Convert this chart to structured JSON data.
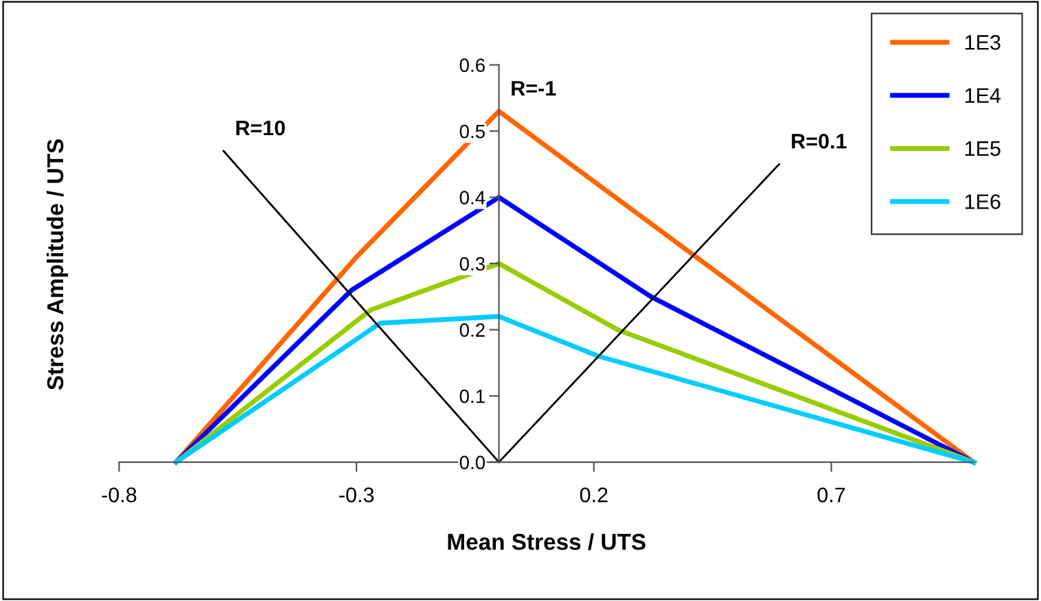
{
  "chart_data": {
    "type": "line",
    "xlabel": "Mean Stress / UTS",
    "ylabel": "Stress Amplitude / UTS",
    "xlim": [
      -0.8,
      1.0
    ],
    "xticks": [
      -0.8,
      -0.3,
      0.2,
      0.7
    ],
    "ylim": [
      0,
      0.6
    ],
    "yticks": [
      {
        "value": 0,
        "label": "0.0"
      },
      0.1,
      0.2,
      0.3,
      0.4,
      0.5,
      0.6
    ],
    "grid": false,
    "legend": "top right",
    "marker": "none",
    "line_style": "solid",
    "series": [
      {
        "name": "1E3",
        "color": "#ff6600",
        "x": [
          -0.68,
          -0.3,
          0,
          1.0
        ],
        "values": [
          0,
          0.31,
          0.53,
          0
        ]
      },
      {
        "name": "1E4",
        "color": "#0000ff",
        "x": [
          -0.68,
          -0.31,
          0,
          0.32,
          1.0
        ],
        "values": [
          0,
          0.26,
          0.4,
          0.25,
          0
        ]
      },
      {
        "name": "1E5",
        "color": "#99cc00",
        "x": [
          -0.68,
          -0.27,
          0,
          0.25,
          1.0
        ],
        "values": [
          0,
          0.23,
          0.3,
          0.2,
          0
        ]
      },
      {
        "name": "1E6",
        "color": "#00ccff",
        "x": [
          -0.68,
          -0.25,
          0,
          0.21,
          1.0
        ],
        "values": [
          0,
          0.21,
          0.22,
          0.16,
          0
        ]
      },
      {
        "color": "#000000",
        "x": [
          0,
          -0.58
        ],
        "values": [
          0,
          0.47
        ]
      },
      {
        "color": "#000000",
        "x": [
          0,
          0.59
        ],
        "values": [
          0,
          0.45
        ]
      }
    ],
    "annotations": [
      {
        "text": "R=10",
        "x": -0.58,
        "y": 0.47
      },
      {
        "text": "R=-1",
        "x": 0,
        "y": 0.53
      },
      {
        "text": "R=0.1",
        "x": 0.59,
        "y": 0.45
      }
    ]
  }
}
